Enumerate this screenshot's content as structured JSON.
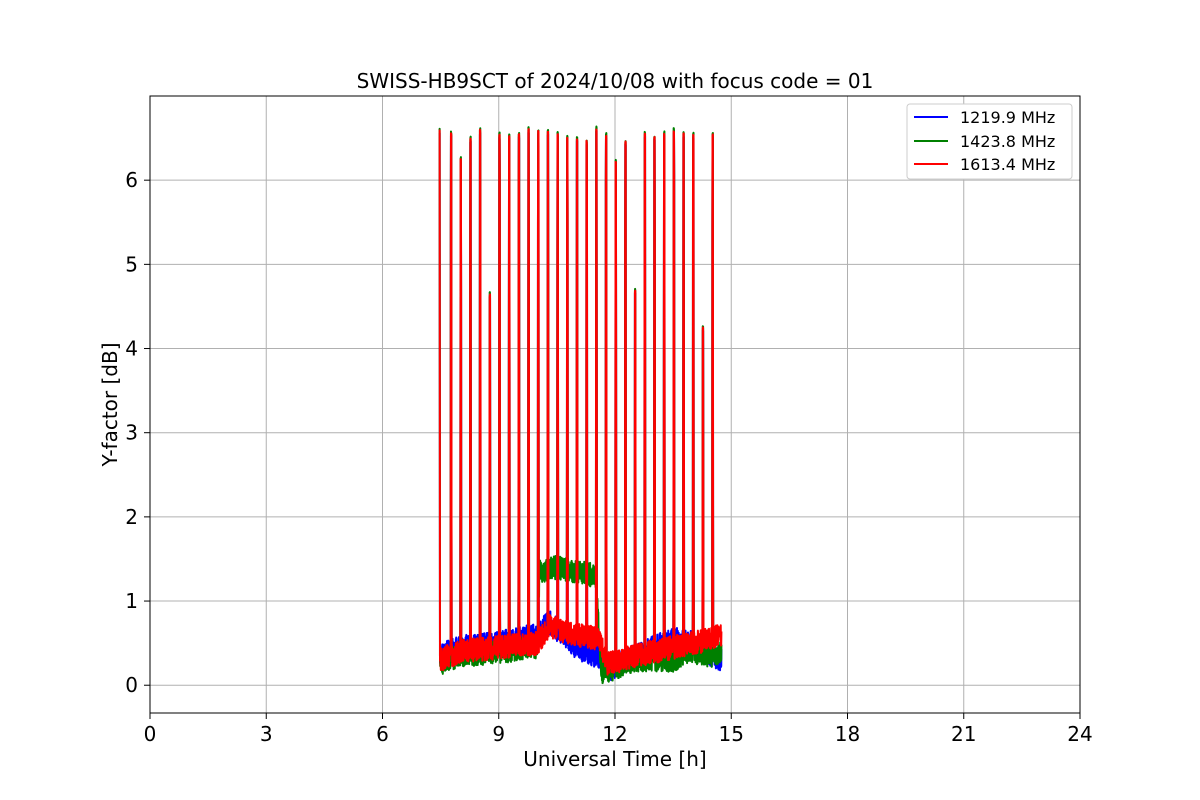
{
  "chart_data": {
    "type": "line",
    "title": "SWISS-HB9SCT of 2024/10/08 with focus code = 01",
    "xlabel": "Universal Time [h]",
    "ylabel": "Y-factor [dB]",
    "xlim": [
      0,
      24
    ],
    "ylim": [
      -0.33,
      7.0
    ],
    "xticks": [
      0,
      3,
      6,
      9,
      12,
      15,
      18,
      21,
      24
    ],
    "yticks": [
      0,
      1,
      2,
      3,
      4,
      5,
      6
    ],
    "grid": true,
    "legend": "top-right",
    "data_range_x": [
      7.47,
      14.75
    ],
    "spikes": [
      {
        "x": 7.47,
        "y": 6.62
      },
      {
        "x": 7.77,
        "y": 6.58
      },
      {
        "x": 8.02,
        "y": 6.28
      },
      {
        "x": 8.27,
        "y": 6.52
      },
      {
        "x": 8.52,
        "y": 6.62
      },
      {
        "x": 8.77,
        "y": 4.67
      },
      {
        "x": 9.02,
        "y": 6.57
      },
      {
        "x": 9.27,
        "y": 6.55
      },
      {
        "x": 9.52,
        "y": 6.57
      },
      {
        "x": 9.77,
        "y": 6.63
      },
      {
        "x": 10.02,
        "y": 6.61
      },
      {
        "x": 10.27,
        "y": 6.6
      },
      {
        "x": 10.52,
        "y": 6.58
      },
      {
        "x": 10.77,
        "y": 6.53
      },
      {
        "x": 11.02,
        "y": 6.52
      },
      {
        "x": 11.27,
        "y": 6.49
      },
      {
        "x": 11.52,
        "y": 6.64
      },
      {
        "x": 11.77,
        "y": 6.56
      },
      {
        "x": 12.02,
        "y": 6.25
      },
      {
        "x": 12.27,
        "y": 6.48
      },
      {
        "x": 12.52,
        "y": 4.71
      },
      {
        "x": 12.77,
        "y": 6.58
      },
      {
        "x": 13.02,
        "y": 6.54
      },
      {
        "x": 13.27,
        "y": 6.58
      },
      {
        "x": 13.52,
        "y": 6.62
      },
      {
        "x": 13.77,
        "y": 6.58
      },
      {
        "x": 14.02,
        "y": 6.57
      },
      {
        "x": 14.27,
        "y": 4.28
      },
      {
        "x": 14.52,
        "y": 6.57
      }
    ],
    "series": [
      {
        "name": "1219.9 MHz",
        "color": "#0000ff",
        "baseline": [
          [
            7.47,
            0.35
          ],
          [
            8.0,
            0.45
          ],
          [
            9.0,
            0.5
          ],
          [
            10.0,
            0.6
          ],
          [
            10.3,
            0.75
          ],
          [
            11.0,
            0.45
          ],
          [
            11.5,
            0.35
          ],
          [
            11.9,
            0.2
          ],
          [
            12.5,
            0.35
          ],
          [
            13.0,
            0.45
          ],
          [
            13.5,
            0.55
          ],
          [
            14.0,
            0.5
          ],
          [
            14.5,
            0.35
          ],
          [
            14.75,
            0.3
          ]
        ]
      },
      {
        "name": "1423.8 MHz",
        "color": "#008000",
        "baseline": [
          [
            7.47,
            0.25
          ],
          [
            8.0,
            0.35
          ],
          [
            9.0,
            0.4
          ],
          [
            10.0,
            0.45
          ],
          [
            10.05,
            1.35
          ],
          [
            10.5,
            1.4
          ],
          [
            11.0,
            1.35
          ],
          [
            11.5,
            1.3
          ],
          [
            11.65,
            0.15
          ],
          [
            12.0,
            0.2
          ],
          [
            12.5,
            0.3
          ],
          [
            13.0,
            0.3
          ],
          [
            13.5,
            0.3
          ],
          [
            14.0,
            0.4
          ],
          [
            14.5,
            0.35
          ],
          [
            14.75,
            0.4
          ]
        ]
      },
      {
        "name": "1613.4 MHz",
        "color": "#ff0000",
        "baseline": [
          [
            7.47,
            0.3
          ],
          [
            8.0,
            0.4
          ],
          [
            9.0,
            0.45
          ],
          [
            10.0,
            0.5
          ],
          [
            10.3,
            0.7
          ],
          [
            10.6,
            0.65
          ],
          [
            11.0,
            0.6
          ],
          [
            11.6,
            0.55
          ],
          [
            11.8,
            0.25
          ],
          [
            12.2,
            0.3
          ],
          [
            12.5,
            0.35
          ],
          [
            13.0,
            0.4
          ],
          [
            13.5,
            0.45
          ],
          [
            14.0,
            0.5
          ],
          [
            14.5,
            0.55
          ],
          [
            14.75,
            0.6
          ]
        ]
      }
    ]
  }
}
